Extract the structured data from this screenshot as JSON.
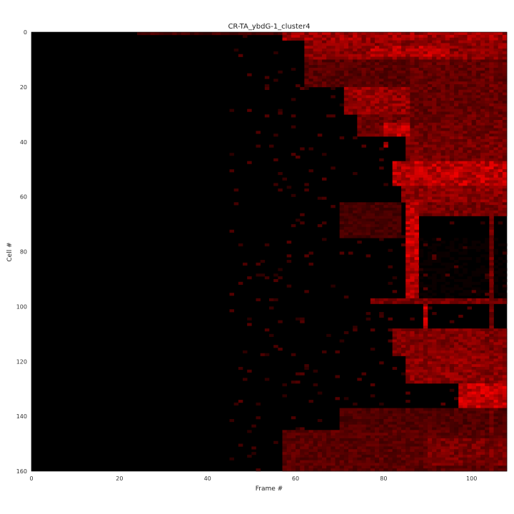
{
  "chart_data": {
    "type": "heatmap",
    "title": "CR-TA_ybdG-1_cluster4",
    "xlabel": "Frame #",
    "ylabel": "Cell #",
    "xlim": [
      0,
      108
    ],
    "ylim": [
      160,
      0
    ],
    "x_ticks": [
      0,
      20,
      40,
      60,
      80,
      100
    ],
    "y_ticks": [
      0,
      20,
      40,
      60,
      80,
      100,
      120,
      140,
      160
    ],
    "n_frames": 108,
    "n_cells": 160,
    "colormap": [
      "#000000",
      "#ff0000"
    ],
    "value_range": [
      0,
      1
    ],
    "bands": [
      {
        "cells": [
          0,
          3
        ],
        "frames": [
          57,
          108
        ],
        "level": 0.8
      },
      {
        "cells": [
          0,
          1
        ],
        "frames": [
          24,
          57
        ],
        "level": 0.35
      },
      {
        "cells": [
          3,
          10
        ],
        "frames": [
          62,
          108
        ],
        "level": 0.7
      },
      {
        "cells": [
          5,
          9
        ],
        "frames": [
          77,
          95
        ],
        "level": 0.9
      },
      {
        "cells": [
          10,
          20
        ],
        "frames": [
          62,
          86
        ],
        "level": 0.45
      },
      {
        "cells": [
          10,
          30
        ],
        "frames": [
          86,
          108
        ],
        "level": 0.5
      },
      {
        "cells": [
          20,
          30
        ],
        "frames": [
          71,
          86
        ],
        "level": 0.75
      },
      {
        "cells": [
          30,
          38
        ],
        "frames": [
          74,
          108
        ],
        "level": 0.55
      },
      {
        "cells": [
          33,
          38
        ],
        "frames": [
          80,
          86
        ],
        "level": 0.95
      },
      {
        "cells": [
          38,
          48
        ],
        "frames": [
          85,
          108
        ],
        "level": 0.6
      },
      {
        "cells": [
          40,
          42
        ],
        "frames": [
          80,
          81
        ],
        "level": 1.0
      },
      {
        "cells": [
          47,
          56
        ],
        "frames": [
          82,
          108
        ],
        "level": 0.95
      },
      {
        "cells": [
          56,
          62
        ],
        "frames": [
          84,
          108
        ],
        "level": 0.7
      },
      {
        "cells": [
          62,
          75
        ],
        "frames": [
          70,
          84
        ],
        "level": 0.35
      },
      {
        "cells": [
          62,
          97
        ],
        "frames": [
          85,
          88
        ],
        "level": 0.95
      },
      {
        "cells": [
          62,
          67
        ],
        "frames": [
          88,
          108
        ],
        "level": 0.6
      },
      {
        "cells": [
          75,
          97
        ],
        "frames": [
          88,
          108
        ],
        "level": 0.05
      },
      {
        "cells": [
          97,
          99
        ],
        "frames": [
          77,
          108
        ],
        "level": 0.6
      },
      {
        "cells": [
          99,
          108
        ],
        "frames": [
          89,
          90
        ],
        "level": 0.95
      },
      {
        "cells": [
          108,
          118
        ],
        "frames": [
          82,
          108
        ],
        "level": 0.65
      },
      {
        "cells": [
          118,
          128
        ],
        "frames": [
          85,
          108
        ],
        "level": 0.7
      },
      {
        "cells": [
          128,
          137
        ],
        "frames": [
          97,
          108
        ],
        "level": 0.95
      },
      {
        "cells": [
          137,
          145
        ],
        "frames": [
          70,
          108
        ],
        "level": 0.4
      },
      {
        "cells": [
          145,
          160
        ],
        "frames": [
          57,
          108
        ],
        "level": 0.45
      },
      {
        "cells": [
          148,
          158
        ],
        "frames": [
          90,
          108
        ],
        "level": 0.6
      },
      {
        "cells": [
          0,
          160
        ],
        "frames": [
          104,
          105
        ],
        "level": 0.55
      }
    ]
  }
}
